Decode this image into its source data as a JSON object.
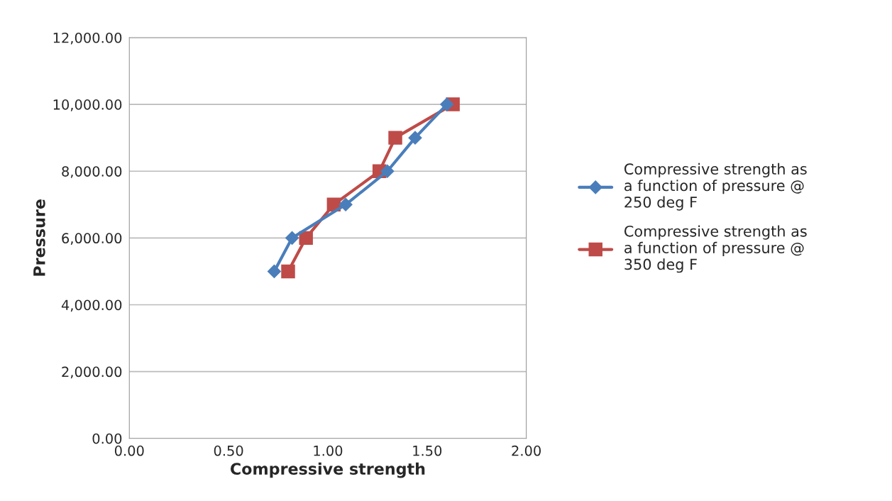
{
  "chart_data": {
    "type": "line",
    "xlabel": "Compressive strength",
    "ylabel": "Pressure",
    "xlim": [
      0,
      2
    ],
    "ylim": [
      0,
      12000
    ],
    "xticks": [
      {
        "value": 0,
        "label": "0.00"
      },
      {
        "value": 0.5,
        "label": "0.50"
      },
      {
        "value": 1,
        "label": "1.00"
      },
      {
        "value": 1.5,
        "label": "1.50"
      },
      {
        "value": 2,
        "label": "2.00"
      }
    ],
    "yticks": [
      {
        "value": 0,
        "label": "0.00"
      },
      {
        "value": 2000,
        "label": "2,000.00"
      },
      {
        "value": 4000,
        "label": "4,000.00"
      },
      {
        "value": 6000,
        "label": "6,000.00"
      },
      {
        "value": 8000,
        "label": "8,000.00"
      },
      {
        "value": 10000,
        "label": "10,000.00"
      },
      {
        "value": 12000,
        "label": "12,000.00"
      }
    ],
    "grid": "y",
    "legend": "right",
    "series": [
      {
        "name": "Compressive strength as\na function of pressure @\n250 deg F",
        "color": "#4a7ebb",
        "marker": "diamond",
        "x": [
          0.73,
          0.82,
          1.09,
          1.3,
          1.44,
          1.6
        ],
        "values": [
          5000,
          6000,
          7000,
          8000,
          9000,
          10000
        ]
      },
      {
        "name": "Compressive strength as\na function of pressure @\n350 deg F",
        "color": "#be4b48",
        "marker": "square",
        "x": [
          0.8,
          0.89,
          1.03,
          1.26,
          1.34,
          1.63
        ],
        "values": [
          5000,
          6000,
          7000,
          8000,
          9000,
          10000
        ]
      }
    ]
  }
}
